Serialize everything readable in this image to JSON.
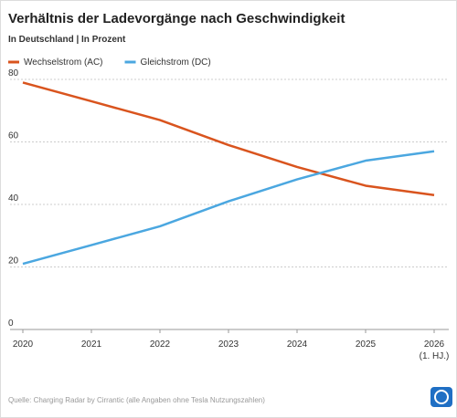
{
  "chart_data": {
    "type": "line",
    "title": "Verhältnis der Ladevorgänge nach Geschwindigkeit",
    "subtitle": "In Deutschland | In Prozent",
    "categories": [
      "2020",
      "2021",
      "2022",
      "2023",
      "2024",
      "2025",
      "2026\n(1. HJ.)"
    ],
    "series": [
      {
        "name": "Wechselstrom (AC)",
        "color": "#d9541e",
        "values": [
          79,
          73,
          67,
          59,
          52,
          46,
          43
        ]
      },
      {
        "name": "Gleichstrom (DC)",
        "color": "#4ba7e0",
        "values": [
          21,
          27,
          33,
          41,
          48,
          54,
          57
        ]
      }
    ],
    "ylim": [
      0,
      80
    ],
    "yticks": [
      0,
      20,
      40,
      60,
      80
    ],
    "grid": true,
    "source": "Quelle: Charging Radar by Cirrantic (alle Angaben ohne Tesla Nutzungszahlen)"
  }
}
